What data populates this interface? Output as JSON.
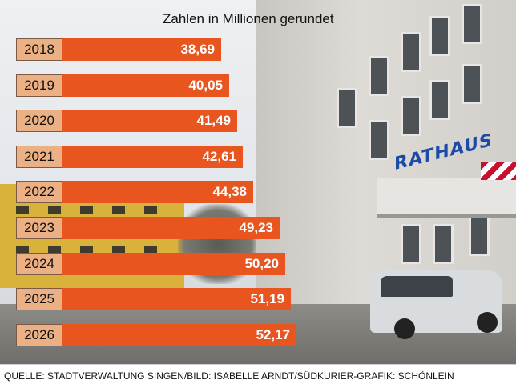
{
  "chart_data": {
    "type": "bar",
    "orientation": "horizontal",
    "title": "Zahlen in Millionen gerundet",
    "categories": [
      "2018",
      "2019",
      "2020",
      "2021",
      "2022",
      "2023",
      "2024",
      "2025",
      "2026"
    ],
    "values": [
      38.69,
      40.05,
      41.49,
      42.61,
      44.38,
      49.23,
      50.2,
      51.19,
      52.17
    ],
    "value_labels": [
      "38,69",
      "40,05",
      "41,49",
      "42,61",
      "44,38",
      "49,23",
      "50,20",
      "51,19",
      "52,17"
    ],
    "xlabel": "",
    "ylabel": "",
    "grid": false,
    "legend": "none",
    "bar_color": "#e8551f",
    "category_box_color": "#ebb083"
  },
  "photo": {
    "sign_text": "RATHAUS"
  },
  "source": "QUELLE: STADTVERWALTUNG SINGEN/BILD: ISABELLE ARNDT/SÜDKURIER-GRAFIK: SCHÖNLEIN"
}
